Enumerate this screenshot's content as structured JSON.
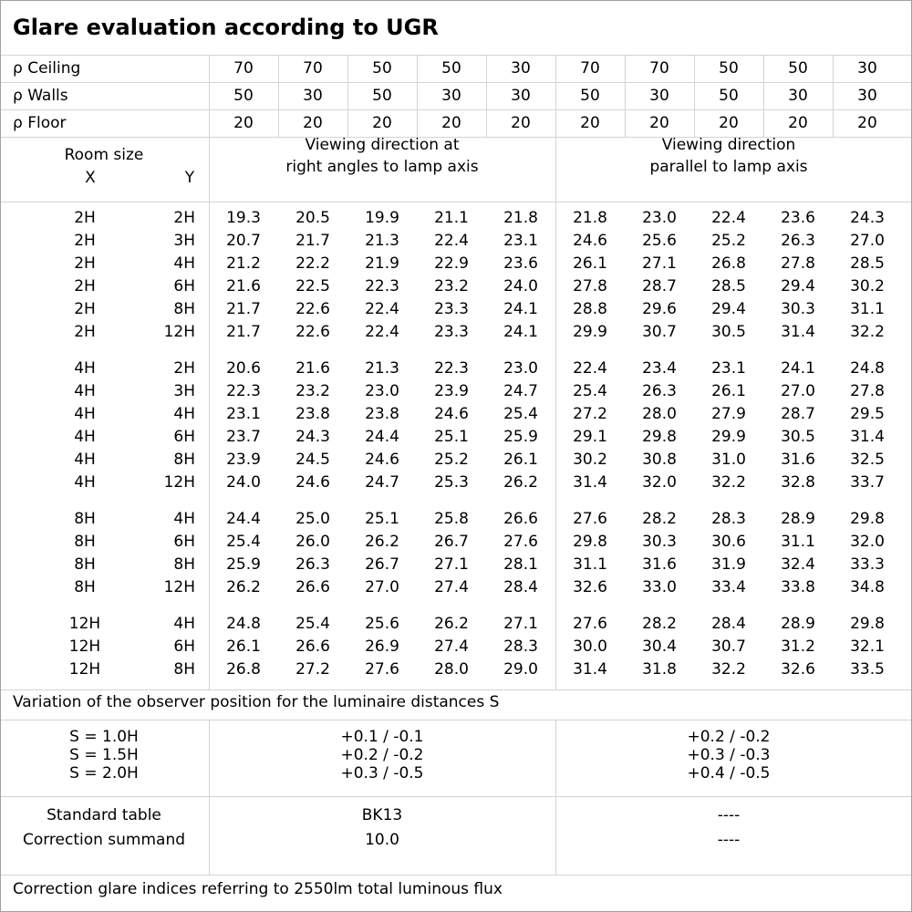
{
  "title": "Glare evaluation according to UGR",
  "reflectance": [
    {
      "label": "ρ Ceiling",
      "values": [
        "70",
        "70",
        "50",
        "50",
        "30",
        "70",
        "70",
        "50",
        "50",
        "30"
      ]
    },
    {
      "label": "ρ Walls",
      "values": [
        "50",
        "30",
        "50",
        "30",
        "30",
        "50",
        "30",
        "50",
        "30",
        "30"
      ]
    },
    {
      "label": "ρ Floor",
      "values": [
        "20",
        "20",
        "20",
        "20",
        "20",
        "20",
        "20",
        "20",
        "20",
        "20"
      ]
    }
  ],
  "room_size": {
    "label": "Room size",
    "x": "X",
    "y": "Y"
  },
  "directions": [
    [
      "Viewing direction at",
      "right angles to lamp axis"
    ],
    [
      "Viewing direction",
      "parallel to lamp axis"
    ]
  ],
  "groups": [
    [
      {
        "x": "2H",
        "y": "2H",
        "values": [
          "19.3",
          "20.5",
          "19.9",
          "21.1",
          "21.8",
          "21.8",
          "23.0",
          "22.4",
          "23.6",
          "24.3"
        ]
      },
      {
        "x": "2H",
        "y": "3H",
        "values": [
          "20.7",
          "21.7",
          "21.3",
          "22.4",
          "23.1",
          "24.6",
          "25.6",
          "25.2",
          "26.3",
          "27.0"
        ]
      },
      {
        "x": "2H",
        "y": "4H",
        "values": [
          "21.2",
          "22.2",
          "21.9",
          "22.9",
          "23.6",
          "26.1",
          "27.1",
          "26.8",
          "27.8",
          "28.5"
        ]
      },
      {
        "x": "2H",
        "y": "6H",
        "values": [
          "21.6",
          "22.5",
          "22.3",
          "23.2",
          "24.0",
          "27.8",
          "28.7",
          "28.5",
          "29.4",
          "30.2"
        ]
      },
      {
        "x": "2H",
        "y": "8H",
        "values": [
          "21.7",
          "22.6",
          "22.4",
          "23.3",
          "24.1",
          "28.8",
          "29.6",
          "29.4",
          "30.3",
          "31.1"
        ]
      },
      {
        "x": "2H",
        "y": "12H",
        "values": [
          "21.7",
          "22.6",
          "22.4",
          "23.3",
          "24.1",
          "29.9",
          "30.7",
          "30.5",
          "31.4",
          "32.2"
        ]
      }
    ],
    [
      {
        "x": "4H",
        "y": "2H",
        "values": [
          "20.6",
          "21.6",
          "21.3",
          "22.3",
          "23.0",
          "22.4",
          "23.4",
          "23.1",
          "24.1",
          "24.8"
        ]
      },
      {
        "x": "4H",
        "y": "3H",
        "values": [
          "22.3",
          "23.2",
          "23.0",
          "23.9",
          "24.7",
          "25.4",
          "26.3",
          "26.1",
          "27.0",
          "27.8"
        ]
      },
      {
        "x": "4H",
        "y": "4H",
        "values": [
          "23.1",
          "23.8",
          "23.8",
          "24.6",
          "25.4",
          "27.2",
          "28.0",
          "27.9",
          "28.7",
          "29.5"
        ]
      },
      {
        "x": "4H",
        "y": "6H",
        "values": [
          "23.7",
          "24.3",
          "24.4",
          "25.1",
          "25.9",
          "29.1",
          "29.8",
          "29.9",
          "30.5",
          "31.4"
        ]
      },
      {
        "x": "4H",
        "y": "8H",
        "values": [
          "23.9",
          "24.5",
          "24.6",
          "25.2",
          "26.1",
          "30.2",
          "30.8",
          "31.0",
          "31.6",
          "32.5"
        ]
      },
      {
        "x": "4H",
        "y": "12H",
        "values": [
          "24.0",
          "24.6",
          "24.7",
          "25.3",
          "26.2",
          "31.4",
          "32.0",
          "32.2",
          "32.8",
          "33.7"
        ]
      }
    ],
    [
      {
        "x": "8H",
        "y": "4H",
        "values": [
          "24.4",
          "25.0",
          "25.1",
          "25.8",
          "26.6",
          "27.6",
          "28.2",
          "28.3",
          "28.9",
          "29.8"
        ]
      },
      {
        "x": "8H",
        "y": "6H",
        "values": [
          "25.4",
          "26.0",
          "26.2",
          "26.7",
          "27.6",
          "29.8",
          "30.3",
          "30.6",
          "31.1",
          "32.0"
        ]
      },
      {
        "x": "8H",
        "y": "8H",
        "values": [
          "25.9",
          "26.3",
          "26.7",
          "27.1",
          "28.1",
          "31.1",
          "31.6",
          "31.9",
          "32.4",
          "33.3"
        ]
      },
      {
        "x": "8H",
        "y": "12H",
        "values": [
          "26.2",
          "26.6",
          "27.0",
          "27.4",
          "28.4",
          "32.6",
          "33.0",
          "33.4",
          "33.8",
          "34.8"
        ]
      }
    ],
    [
      {
        "x": "12H",
        "y": "4H",
        "values": [
          "24.8",
          "25.4",
          "25.6",
          "26.2",
          "27.1",
          "27.6",
          "28.2",
          "28.4",
          "28.9",
          "29.8"
        ]
      },
      {
        "x": "12H",
        "y": "6H",
        "values": [
          "26.1",
          "26.6",
          "26.9",
          "27.4",
          "28.3",
          "30.0",
          "30.4",
          "30.7",
          "31.2",
          "32.1"
        ]
      },
      {
        "x": "12H",
        "y": "8H",
        "values": [
          "26.8",
          "27.2",
          "27.6",
          "28.0",
          "29.0",
          "31.4",
          "31.8",
          "32.2",
          "32.6",
          "33.5"
        ]
      }
    ]
  ],
  "variation_title": "Variation of the observer position for the luminaire distances S",
  "variation": {
    "labels": [
      "S = 1.0H",
      "S = 1.5H",
      "S = 2.0H"
    ],
    "perpendicular": [
      "+0.1 / -0.1",
      "+0.2 / -0.2",
      "+0.3 / -0.5"
    ],
    "parallel": [
      "+0.2 / -0.2",
      "+0.3 / -0.3",
      "+0.4 / -0.5"
    ]
  },
  "standard": {
    "labels": [
      "Standard table",
      "Correction summand"
    ],
    "perpendicular": [
      "BK13",
      "10.0"
    ],
    "parallel": [
      "----",
      "----"
    ]
  },
  "footer": "Correction glare indices referring to 2550lm total luminous flux"
}
